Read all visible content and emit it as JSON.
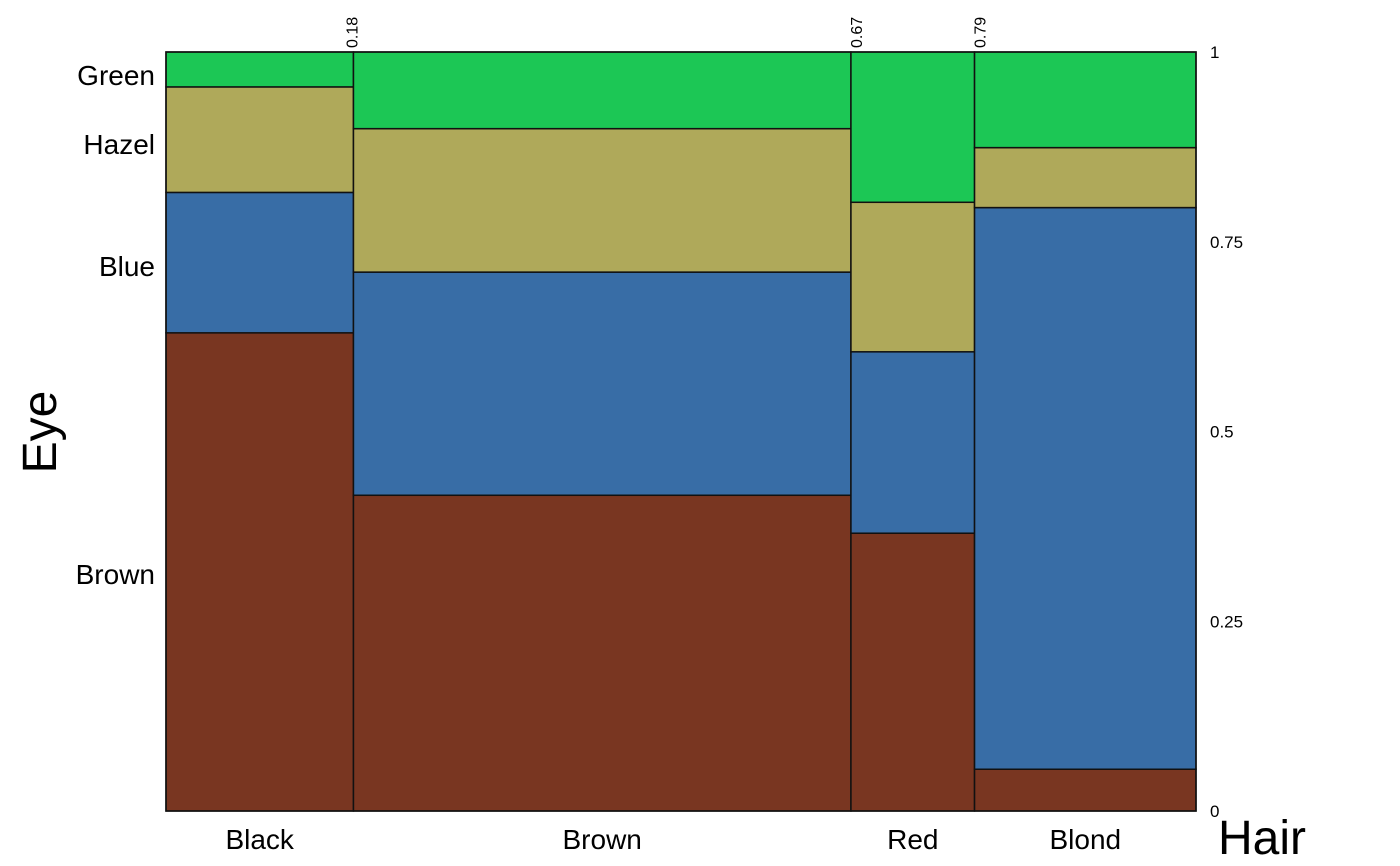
{
  "chart_data": {
    "type": "mosaic",
    "xlabel": "Hair",
    "ylabel": "Eye",
    "hair_categories": [
      "Black",
      "Brown",
      "Red",
      "Blond"
    ],
    "hair_widths": [
      0.182,
      0.483,
      0.12,
      0.215
    ],
    "top_tick_labels": [
      "0.18",
      "0.67",
      "0.79"
    ],
    "top_tick_positions": [
      0.18,
      0.67,
      0.79
    ],
    "right_tick_labels": [
      "0",
      "0.25",
      "0.5",
      "0.75",
      "1"
    ],
    "right_tick_values": [
      0,
      0.25,
      0.5,
      0.75,
      1
    ],
    "eye_categories": [
      "Brown",
      "Blue",
      "Hazel",
      "Green"
    ],
    "eye_label_positions": [
      0.312,
      0.718,
      0.879,
      0.97
    ],
    "series": [
      {
        "name": "Brown",
        "values": [
          0.63,
          0.416,
          0.366,
          0.055
        ]
      },
      {
        "name": "Blue",
        "values": [
          0.185,
          0.294,
          0.239,
          0.74
        ]
      },
      {
        "name": "Hazel",
        "values": [
          0.139,
          0.189,
          0.197,
          0.079
        ]
      },
      {
        "name": "Green",
        "values": [
          0.046,
          0.101,
          0.198,
          0.126
        ]
      }
    ],
    "colors": {
      "Brown": "#793621",
      "Blue": "#386da6",
      "Hazel": "#afa95a",
      "Green": "#1cc755"
    },
    "grid": false,
    "legend": "none"
  }
}
